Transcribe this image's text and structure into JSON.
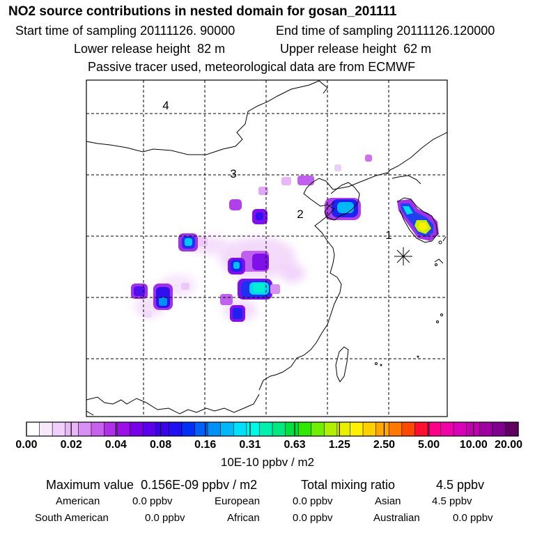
{
  "title": "NO2 source contributions in nested domain for gosan_201111",
  "sampling": {
    "start_label": "Start time of sampling",
    "start_value": "20111126. 90000",
    "end_label": "End time of sampling",
    "end_value": "20111126.120000"
  },
  "release": {
    "lower_label": "Lower release height",
    "lower_value": "82 m",
    "upper_label": "Upper release height",
    "upper_value": "62 m"
  },
  "note": "Passive tracer used, meteorological data are from ECMWF",
  "map": {
    "region_labels": [
      "1",
      "2",
      "3",
      "4"
    ],
    "receptor_marker": "asterisk-star-icon"
  },
  "colorbar": {
    "labels": [
      "0.00",
      "0.02",
      "0.04",
      "0.08",
      "0.16",
      "0.31",
      "0.63",
      "1.25",
      "2.50",
      "5.00",
      "10.00",
      "20.00"
    ],
    "colors": [
      "#ffffff",
      "#f8e8fc",
      "#f0d0fa",
      "#e8b8f6",
      "#d890f2",
      "#c860ee",
      "#b030ea",
      "#9a10e6",
      "#7800e8",
      "#5a00ea",
      "#3c00ee",
      "#2010f2",
      "#0030f6",
      "#0060f8",
      "#0090f8",
      "#00b8f8",
      "#00e0f8",
      "#00f8e8",
      "#00f0b0",
      "#00e880",
      "#00e040",
      "#30e800",
      "#70f000",
      "#b0f000",
      "#e8f000",
      "#fff000",
      "#ffd000",
      "#ffa800",
      "#ff7800",
      "#ff4800",
      "#ff1030",
      "#ff0088",
      "#f000a8",
      "#d800b8",
      "#c000b0",
      "#a000a0",
      "#800090",
      "#600060"
    ],
    "units": "10E-10 ppbv / m2"
  },
  "stats": {
    "max_label": "Maximum value",
    "max_value": "0.156E-09 ppbv / m2",
    "total_label": "Total mixing ratio",
    "total_value": "4.5 ppbv"
  },
  "regions": {
    "american_label": "American",
    "american_value": "0.0 ppbv",
    "european_label": "European",
    "european_value": "0.0 ppbv",
    "asian_label": "Asian",
    "asian_value": "4.5 ppbv",
    "south_american_label": "South American",
    "south_american_value": "0.0 ppbv",
    "african_label": "African",
    "african_value": "0.0 ppbv",
    "australian_label": "Australian",
    "australian_value": "0.0 ppbv"
  }
}
